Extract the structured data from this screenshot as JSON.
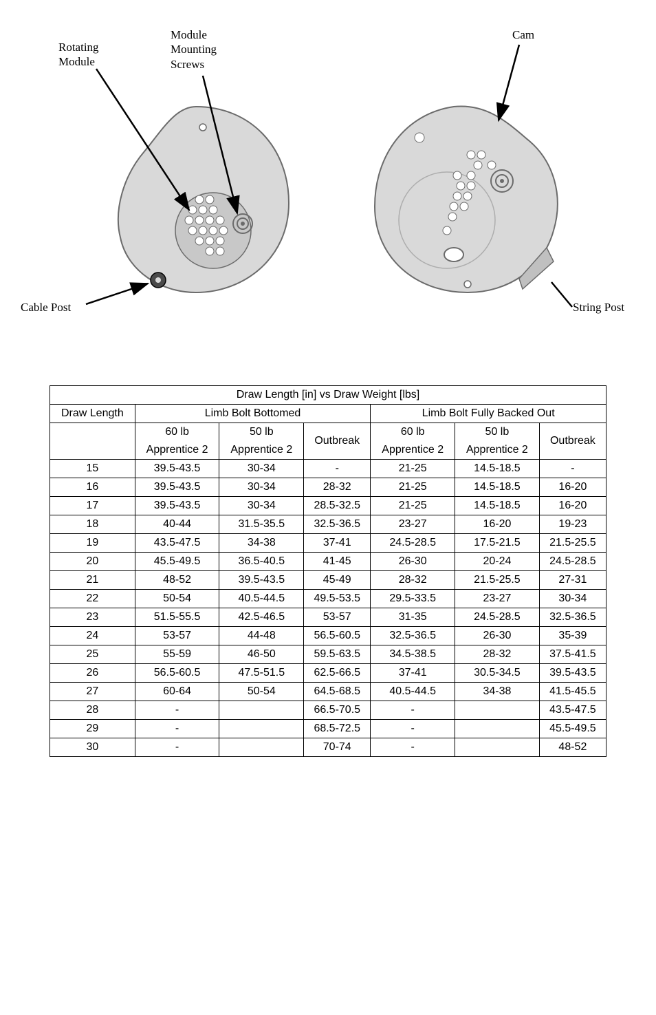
{
  "diagram": {
    "labels": {
      "rotating_module": "Rotating\nModule",
      "module_mounting_screws": "Module\nMounting\nScrews",
      "cam": "Cam",
      "cable_post": "Cable Post",
      "string_post": "String Post"
    }
  },
  "table": {
    "title": "Draw Length [in] vs Draw Weight [lbs]",
    "col1_header": "Draw Length",
    "group1_header": "Limb Bolt Bottomed",
    "group2_header": "Limb Bolt Fully Backed Out",
    "sub_60lb": "60 lb",
    "sub_50lb": "50 lb",
    "sub_app2": "Apprentice 2",
    "sub_outbreak": "Outbreak",
    "rows": [
      {
        "dl": "15",
        "b60": "39.5-43.5",
        "b50": "30-34",
        "bob": "-",
        "f60": "21-25",
        "f50": "14.5-18.5",
        "fob": "-"
      },
      {
        "dl": "16",
        "b60": "39.5-43.5",
        "b50": "30-34",
        "bob": "28-32",
        "f60": "21-25",
        "f50": "14.5-18.5",
        "fob": "16-20"
      },
      {
        "dl": "17",
        "b60": "39.5-43.5",
        "b50": "30-34",
        "bob": "28.5-32.5",
        "f60": "21-25",
        "f50": "14.5-18.5",
        "fob": "16-20"
      },
      {
        "dl": "18",
        "b60": "40-44",
        "b50": "31.5-35.5",
        "bob": "32.5-36.5",
        "f60": "23-27",
        "f50": "16-20",
        "fob": "19-23"
      },
      {
        "dl": "19",
        "b60": "43.5-47.5",
        "b50": "34-38",
        "bob": "37-41",
        "f60": "24.5-28.5",
        "f50": "17.5-21.5",
        "fob": "21.5-25.5"
      },
      {
        "dl": "20",
        "b60": "45.5-49.5",
        "b50": "36.5-40.5",
        "bob": "41-45",
        "f60": "26-30",
        "f50": "20-24",
        "fob": "24.5-28.5"
      },
      {
        "dl": "21",
        "b60": "48-52",
        "b50": "39.5-43.5",
        "bob": "45-49",
        "f60": "28-32",
        "f50": "21.5-25.5",
        "fob": "27-31"
      },
      {
        "dl": "22",
        "b60": "50-54",
        "b50": "40.5-44.5",
        "bob": "49.5-53.5",
        "f60": "29.5-33.5",
        "f50": "23-27",
        "fob": "30-34"
      },
      {
        "dl": "23",
        "b60": "51.5-55.5",
        "b50": "42.5-46.5",
        "bob": "53-57",
        "f60": "31-35",
        "f50": "24.5-28.5",
        "fob": "32.5-36.5"
      },
      {
        "dl": "24",
        "b60": "53-57",
        "b50": "44-48",
        "bob": "56.5-60.5",
        "f60": "32.5-36.5",
        "f50": "26-30",
        "fob": "35-39"
      },
      {
        "dl": "25",
        "b60": "55-59",
        "b50": "46-50",
        "bob": "59.5-63.5",
        "f60": "34.5-38.5",
        "f50": "28-32",
        "fob": "37.5-41.5"
      },
      {
        "dl": "26",
        "b60": "56.5-60.5",
        "b50": "47.5-51.5",
        "bob": "62.5-66.5",
        "f60": "37-41",
        "f50": "30.5-34.5",
        "fob": "39.5-43.5"
      },
      {
        "dl": "27",
        "b60": "60-64",
        "b50": "50-54",
        "bob": "64.5-68.5",
        "f60": "40.5-44.5",
        "f50": "34-38",
        "fob": "41.5-45.5"
      },
      {
        "dl": "28",
        "b60": "-",
        "b50": "",
        "bob": "66.5-70.5",
        "f60": "-",
        "f50": "",
        "fob": "43.5-47.5"
      },
      {
        "dl": "29",
        "b60": "-",
        "b50": "",
        "bob": "68.5-72.5",
        "f60": "-",
        "f50": "",
        "fob": "45.5-49.5"
      },
      {
        "dl": "30",
        "b60": "-",
        "b50": "",
        "bob": "70-74",
        "f60": "-",
        "f50": "",
        "fob": "48-52"
      }
    ]
  },
  "styling": {
    "background": "#ffffff",
    "cam_fill": "#d9d9d9",
    "cam_stroke": "#6b6b6b",
    "label_font": "Georgia",
    "table_border": "#000000"
  }
}
